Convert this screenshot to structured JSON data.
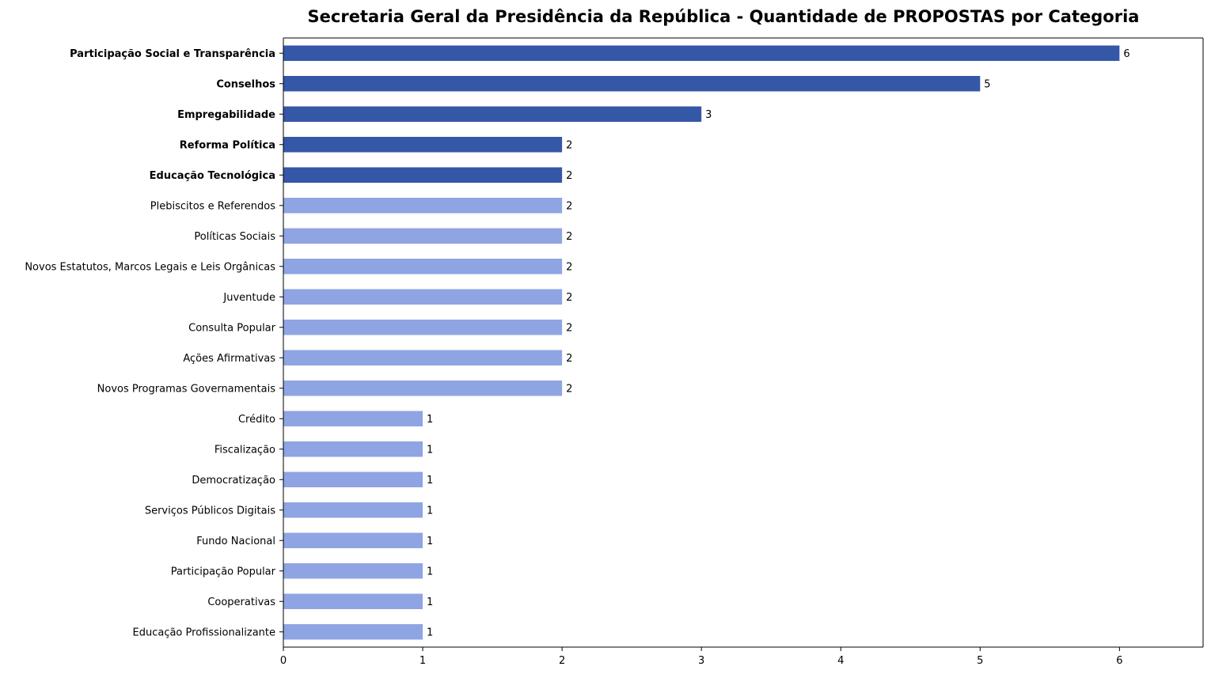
{
  "chart_data": {
    "type": "bar",
    "orientation": "horizontal",
    "title": "Secretaria Geral da Presidência da República - Quantidade de PROPOSTAS por Categoria",
    "xlabel": "",
    "ylabel": "",
    "xlim": [
      0,
      6.6
    ],
    "x_ticks": [
      0,
      1,
      2,
      3,
      4,
      5,
      6
    ],
    "grid": false,
    "colors": {
      "highlight": "#3557a8",
      "normal": "#8fa4e2",
      "spine": "#000000"
    },
    "categories": [
      "Participação Social e Transparência",
      "Conselhos",
      "Empregabilidade",
      "Reforma Política",
      "Educação Tecnológica",
      "Plebiscitos e Referendos",
      "Políticas Sociais",
      "Novos Estatutos, Marcos Legais e Leis Orgânicas",
      "Juventude",
      "Consulta Popular",
      "Ações Afirmativas",
      "Novos Programas Governamentais",
      "Crédito",
      "Fiscalização",
      "Democratização",
      "Serviços Públicos Digitais",
      "Fundo Nacional",
      "Participação Popular",
      "Cooperativas",
      "Educação Profissionalizante"
    ],
    "values": [
      6,
      5,
      3,
      2,
      2,
      2,
      2,
      2,
      2,
      2,
      2,
      2,
      1,
      1,
      1,
      1,
      1,
      1,
      1,
      1
    ],
    "highlighted": [
      true,
      true,
      true,
      true,
      true,
      false,
      false,
      false,
      false,
      false,
      false,
      false,
      false,
      false,
      false,
      false,
      false,
      false,
      false,
      false
    ]
  }
}
